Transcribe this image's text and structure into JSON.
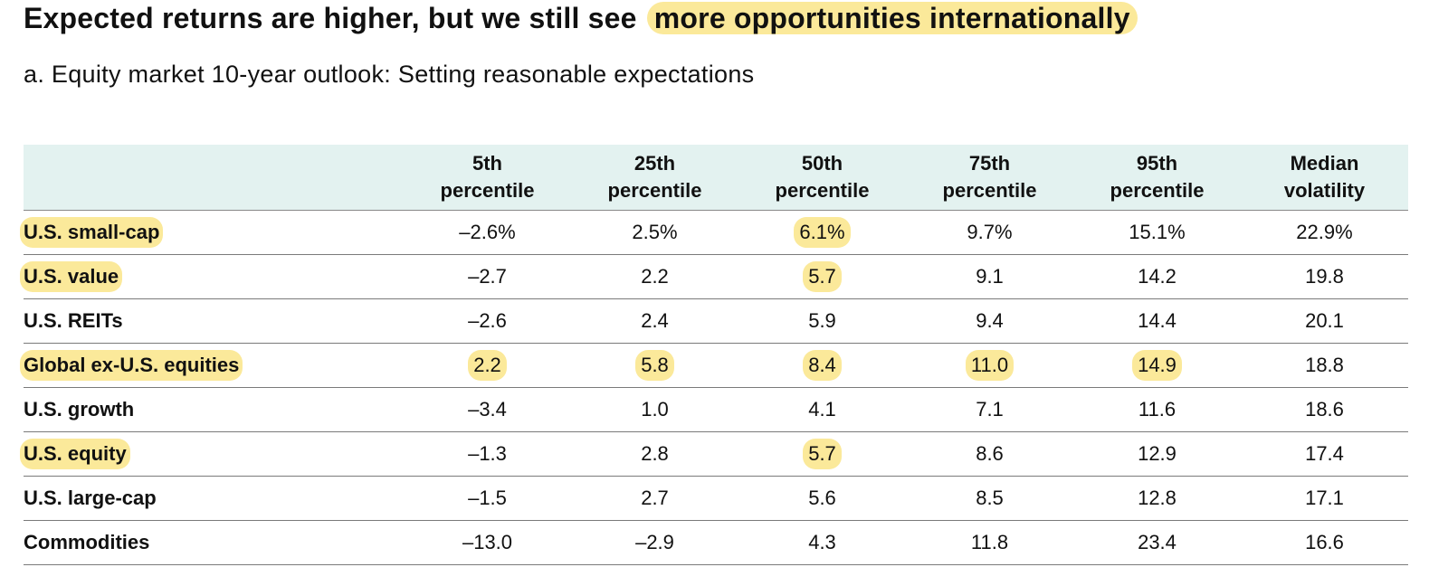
{
  "headline": {
    "prefix": "Expected returns are higher, but we still see ",
    "highlight": "more opportunities internationally"
  },
  "subtitle": "a.  Equity market 10-year outlook: Setting reasonable expectations",
  "colors": {
    "highlight": "#fbe99a",
    "header_bg": "#e3f2f0",
    "text": "#111111",
    "rule": "#7a7a7a"
  },
  "chart_data": {
    "type": "table",
    "columns": [
      {
        "line1": "5th",
        "line2": "percentile"
      },
      {
        "line1": "25th",
        "line2": "percentile"
      },
      {
        "line1": "50th",
        "line2": "percentile"
      },
      {
        "line1": "75th",
        "line2": "percentile"
      },
      {
        "line1": "95th",
        "line2": "percentile"
      },
      {
        "line1": "Median",
        "line2": "volatility"
      }
    ],
    "rows": [
      {
        "label": "U.S. small-cap",
        "label_highlight": true,
        "values": [
          "–2.6%",
          "2.5%",
          "6.1%",
          "9.7%",
          "15.1%",
          "22.9%"
        ],
        "highlight": [
          false,
          false,
          true,
          false,
          false,
          false
        ]
      },
      {
        "label": "U.S. value",
        "label_highlight": true,
        "values": [
          "–2.7",
          "2.2",
          "5.7",
          "9.1",
          "14.2",
          "19.8"
        ],
        "highlight": [
          false,
          false,
          true,
          false,
          false,
          false
        ]
      },
      {
        "label": "U.S. REITs",
        "label_highlight": false,
        "values": [
          "–2.6",
          "2.4",
          "5.9",
          "9.4",
          "14.4",
          "20.1"
        ],
        "highlight": [
          false,
          false,
          false,
          false,
          false,
          false
        ]
      },
      {
        "label": "Global ex-U.S. equities",
        "label_highlight": true,
        "values": [
          "2.2",
          "5.8",
          "8.4",
          "11.0",
          "14.9",
          "18.8"
        ],
        "highlight": [
          true,
          true,
          true,
          true,
          true,
          false
        ]
      },
      {
        "label": "U.S. growth",
        "label_highlight": false,
        "values": [
          "–3.4",
          "1.0",
          "4.1",
          "7.1",
          "11.6",
          "18.6"
        ],
        "highlight": [
          false,
          false,
          false,
          false,
          false,
          false
        ]
      },
      {
        "label": "U.S. equity",
        "label_highlight": true,
        "values": [
          "–1.3",
          "2.8",
          "5.7",
          "8.6",
          "12.9",
          "17.4"
        ],
        "highlight": [
          false,
          false,
          true,
          false,
          false,
          false
        ]
      },
      {
        "label": "U.S. large-cap",
        "label_highlight": false,
        "values": [
          "–1.5",
          "2.7",
          "5.6",
          "8.5",
          "12.8",
          "17.1"
        ],
        "highlight": [
          false,
          false,
          false,
          false,
          false,
          false
        ]
      },
      {
        "label": "Commodities",
        "label_highlight": false,
        "values": [
          "–13.0",
          "–2.9",
          "4.3",
          "11.8",
          "23.4",
          "16.6"
        ],
        "highlight": [
          false,
          false,
          false,
          false,
          false,
          false
        ]
      }
    ]
  }
}
